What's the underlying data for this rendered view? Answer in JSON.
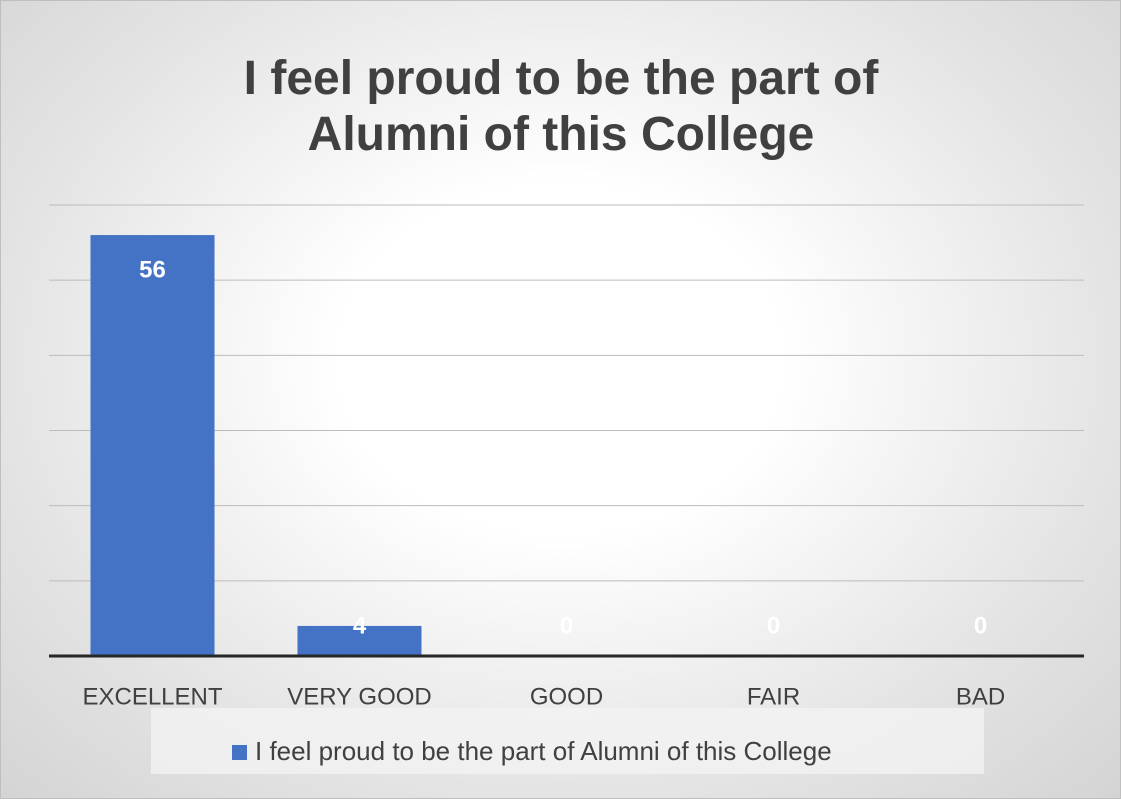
{
  "chart_data": {
    "type": "bar",
    "title": "I feel proud to be the part of Alumni of this College",
    "categories": [
      "EXCELLENT",
      "VERY GOOD",
      "GOOD",
      "FAIR",
      "BAD"
    ],
    "series": [
      {
        "name": "I feel proud to be the part of Alumni of this College",
        "color": "#4472c4",
        "values": [
          56,
          4,
          0,
          0,
          0
        ]
      }
    ],
    "ylim": [
      0,
      60
    ],
    "yticks": [
      0,
      10,
      20,
      30,
      40,
      50,
      60
    ],
    "grid": true,
    "legend": "bottom"
  }
}
